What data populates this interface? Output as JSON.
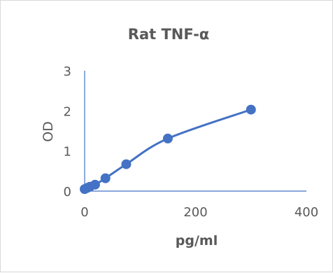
{
  "chart_data": {
    "type": "scatter",
    "title": "Rat TNF-α",
    "xlabel": "pg/ml",
    "ylabel": "OD",
    "xlim": [
      0,
      400
    ],
    "ylim": [
      0,
      3
    ],
    "x_ticks": [
      0,
      200,
      400
    ],
    "y_ticks": [
      0,
      1,
      2,
      3
    ],
    "x_tick_labels": [
      "0",
      "200",
      "400"
    ],
    "y_tick_labels": [
      "0",
      "1",
      "2",
      "3"
    ],
    "grid": false,
    "smooth_line": true,
    "series": [
      {
        "color": "#4472c4",
        "points": [
          {
            "x": 0,
            "y": 0.05
          },
          {
            "x": 4.7,
            "y": 0.08
          },
          {
            "x": 9.4,
            "y": 0.11
          },
          {
            "x": 18.8,
            "y": 0.16
          },
          {
            "x": 37.5,
            "y": 0.32
          },
          {
            "x": 75,
            "y": 0.67
          },
          {
            "x": 150,
            "y": 1.31
          },
          {
            "x": 300,
            "y": 2.03
          }
        ]
      }
    ]
  }
}
